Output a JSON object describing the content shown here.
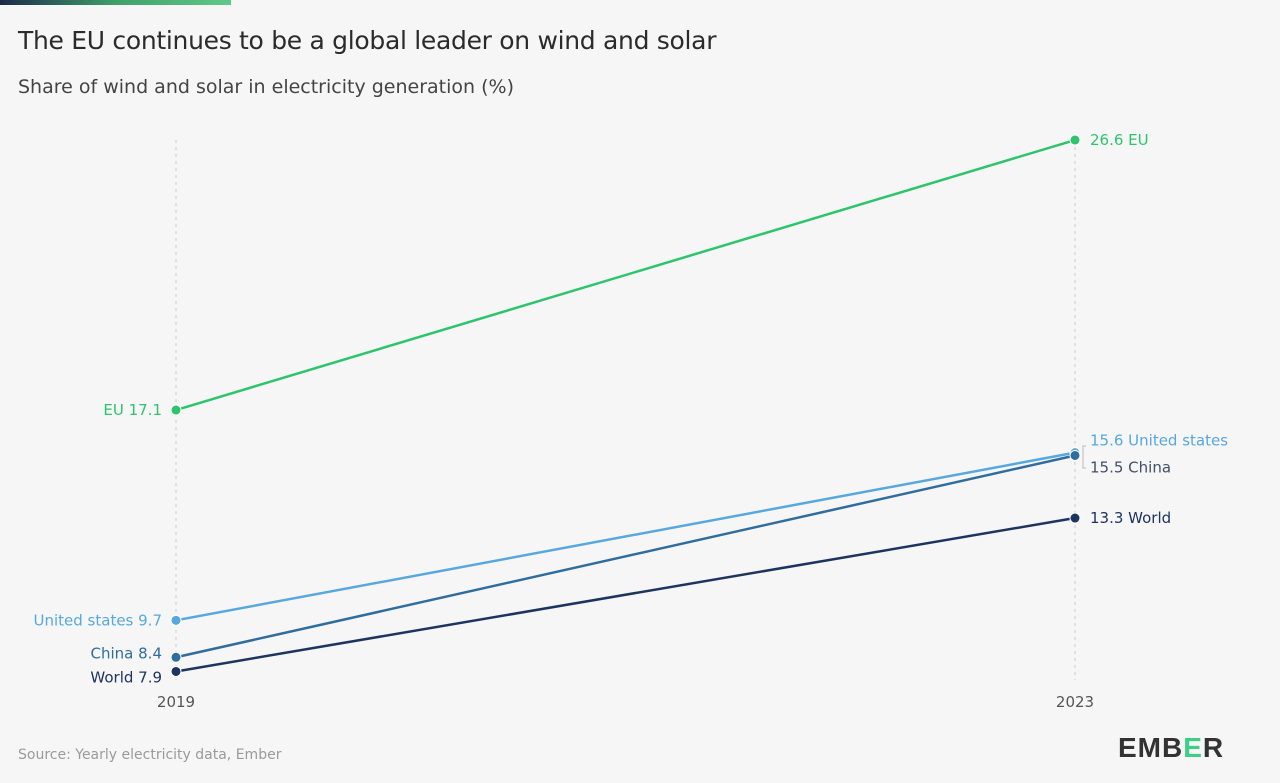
{
  "title": "The EU continues to be a global leader on wind and solar",
  "subtitle": "Share of wind and solar in electricity generation (%)",
  "source": "Source: Yearly electricity data, Ember",
  "logo": "EMBER",
  "chart_data": {
    "type": "line",
    "title": "The EU continues to be a global leader on wind and solar",
    "ylabel": "Share of wind and solar in electricity generation (%)",
    "x": [
      "2019",
      "2023"
    ],
    "series": [
      {
        "name": "EU",
        "values": [
          17.1,
          26.6
        ],
        "color": "#2ec46d",
        "label_start": "EU 17.1",
        "label_end": "26.6 EU"
      },
      {
        "name": "United states",
        "values": [
          9.7,
          15.6
        ],
        "color": "#56a8de",
        "label_start": "United states 9.7",
        "label_end": "15.6 United states"
      },
      {
        "name": "China",
        "values": [
          8.4,
          15.5
        ],
        "color": "#2f6d9f",
        "label_start": "China 8.4",
        "label_end": "15.5 China"
      },
      {
        "name": "World",
        "values": [
          7.9,
          13.3
        ],
        "color": "#1d3461",
        "label_start": "World 7.9",
        "label_end": "13.3 World"
      }
    ]
  }
}
